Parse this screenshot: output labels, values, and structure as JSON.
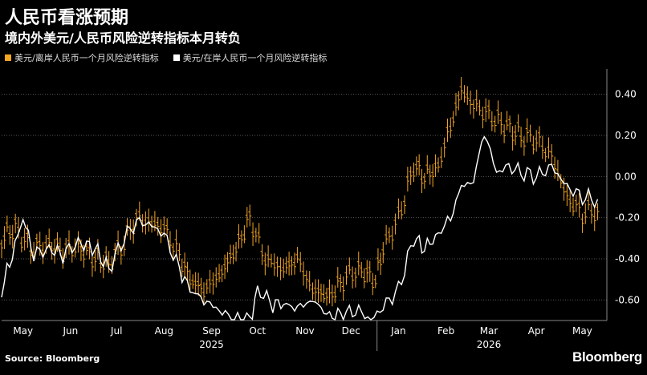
{
  "title": "人民币看涨预期",
  "subtitle": "境内外美元/人民币风险逆转指标本月转负",
  "source": "Source: Bloomberg",
  "logo": "Bloomberg",
  "colors": {
    "offshore": "#f5a623",
    "onshore": "#ffffff",
    "background": "#000000",
    "grid": "#5a5a5a"
  },
  "chart_data": {
    "type": "line",
    "legend_position": "top-left",
    "grid": true,
    "ylim": [
      -0.7,
      0.5
    ],
    "yticks": [
      0.4,
      0.2,
      0.0,
      -0.2,
      -0.4,
      -0.6
    ],
    "ytick_labels": [
      "0.40",
      "0.20",
      "0.00",
      "-0.20",
      "-0.40",
      "-0.60"
    ],
    "xlim": [
      "2025-05-01",
      "2026-05-31"
    ],
    "month_labels": [
      {
        "label": "May",
        "date": "2025-05-15"
      },
      {
        "label": "Jun",
        "date": "2025-06-15"
      },
      {
        "label": "Jul",
        "date": "2025-07-15"
      },
      {
        "label": "Aug",
        "date": "2025-08-15"
      },
      {
        "label": "Sep",
        "date": "2025-09-15"
      },
      {
        "label": "Oct",
        "date": "2025-10-15"
      },
      {
        "label": "Nov",
        "date": "2025-11-15"
      },
      {
        "label": "Dec",
        "date": "2025-12-15"
      },
      {
        "label": "Jan",
        "date": "2026-01-15"
      },
      {
        "label": "Feb",
        "date": "2026-02-15"
      },
      {
        "label": "Mar",
        "date": "2026-03-15"
      },
      {
        "label": "Apr",
        "date": "2026-04-15"
      },
      {
        "label": "May",
        "date": "2026-05-15"
      }
    ],
    "year_labels": [
      {
        "label": "2025",
        "date": "2025-09-15"
      },
      {
        "label": "2026",
        "date": "2026-03-15"
      }
    ],
    "series": [
      {
        "name": "美元/离岸人民币一个月风险逆转指标",
        "color": "#f5a623",
        "style": "ohlc",
        "points": [
          [
            "2025-05-01",
            -0.3
          ],
          [
            "2025-05-10",
            -0.25
          ],
          [
            "2025-05-20",
            -0.35
          ],
          [
            "2025-06-01",
            -0.33
          ],
          [
            "2025-06-10",
            -0.36
          ],
          [
            "2025-06-20",
            -0.34
          ],
          [
            "2025-07-01",
            -0.4
          ],
          [
            "2025-07-10",
            -0.42
          ],
          [
            "2025-07-20",
            -0.32
          ],
          [
            "2025-07-28",
            -0.2
          ],
          [
            "2025-08-05",
            -0.22
          ],
          [
            "2025-08-15",
            -0.25
          ],
          [
            "2025-08-25",
            -0.38
          ],
          [
            "2025-09-01",
            -0.5
          ],
          [
            "2025-09-10",
            -0.55
          ],
          [
            "2025-09-20",
            -0.48
          ],
          [
            "2025-10-01",
            -0.35
          ],
          [
            "2025-10-10",
            -0.2
          ],
          [
            "2025-10-20",
            -0.4
          ],
          [
            "2025-11-01",
            -0.45
          ],
          [
            "2025-11-10",
            -0.4
          ],
          [
            "2025-11-20",
            -0.55
          ],
          [
            "2025-12-01",
            -0.58
          ],
          [
            "2025-12-10",
            -0.5
          ],
          [
            "2025-12-20",
            -0.45
          ],
          [
            "2025-12-31",
            -0.5
          ],
          [
            "2026-01-05",
            -0.35
          ],
          [
            "2026-01-15",
            -0.2
          ],
          [
            "2026-01-25",
            0.05
          ],
          [
            "2026-02-01",
            0.0
          ],
          [
            "2026-02-10",
            0.05
          ],
          [
            "2026-02-18",
            0.25
          ],
          [
            "2026-02-25",
            0.42
          ],
          [
            "2026-03-05",
            0.35
          ],
          [
            "2026-03-15",
            0.3
          ],
          [
            "2026-03-25",
            0.25
          ],
          [
            "2026-04-05",
            0.2
          ],
          [
            "2026-04-15",
            0.18
          ],
          [
            "2026-04-25",
            0.1
          ],
          [
            "2026-05-05",
            -0.1
          ],
          [
            "2026-05-15",
            -0.18
          ],
          [
            "2026-05-25",
            -0.16
          ]
        ]
      },
      {
        "name": "美元/在岸人民币一个月风险逆转指标",
        "color": "#ffffff",
        "style": "line",
        "points": [
          [
            "2025-05-01",
            -0.55
          ],
          [
            "2025-05-08",
            -0.38
          ],
          [
            "2025-05-15",
            -0.2
          ],
          [
            "2025-05-22",
            -0.38
          ],
          [
            "2025-06-01",
            -0.35
          ],
          [
            "2025-06-10",
            -0.38
          ],
          [
            "2025-06-20",
            -0.32
          ],
          [
            "2025-07-01",
            -0.35
          ],
          [
            "2025-07-10",
            -0.45
          ],
          [
            "2025-07-20",
            -0.3
          ],
          [
            "2025-07-28",
            -0.22
          ],
          [
            "2025-08-05",
            -0.23
          ],
          [
            "2025-08-15",
            -0.28
          ],
          [
            "2025-08-25",
            -0.45
          ],
          [
            "2025-09-01",
            -0.55
          ],
          [
            "2025-09-10",
            -0.6
          ],
          [
            "2025-09-20",
            -0.65
          ],
          [
            "2025-09-30",
            -0.7
          ],
          [
            "2025-10-10",
            -0.7
          ],
          [
            "2025-10-15",
            -0.55
          ],
          [
            "2025-10-25",
            -0.62
          ],
          [
            "2025-11-01",
            -0.62
          ],
          [
            "2025-11-10",
            -0.64
          ],
          [
            "2025-11-20",
            -0.6
          ],
          [
            "2025-12-01",
            -0.68
          ],
          [
            "2025-12-10",
            -0.67
          ],
          [
            "2025-12-20",
            -0.65
          ],
          [
            "2025-12-28",
            -0.7
          ],
          [
            "2026-01-15",
            -0.55
          ],
          [
            "2026-01-25",
            -0.3
          ],
          [
            "2026-02-01",
            -0.35
          ],
          [
            "2026-02-10",
            -0.28
          ],
          [
            "2026-02-18",
            -0.2
          ],
          [
            "2026-02-25",
            -0.05
          ],
          [
            "2026-03-05",
            -0.02
          ],
          [
            "2026-03-12",
            0.22
          ],
          [
            "2026-03-20",
            0.02
          ],
          [
            "2026-03-28",
            0.05
          ],
          [
            "2026-04-05",
            0.02
          ],
          [
            "2026-04-15",
            0.0
          ],
          [
            "2026-04-25",
            0.05
          ],
          [
            "2026-05-05",
            -0.05
          ],
          [
            "2026-05-15",
            -0.1
          ],
          [
            "2026-05-25",
            -0.11
          ]
        ]
      }
    ]
  }
}
